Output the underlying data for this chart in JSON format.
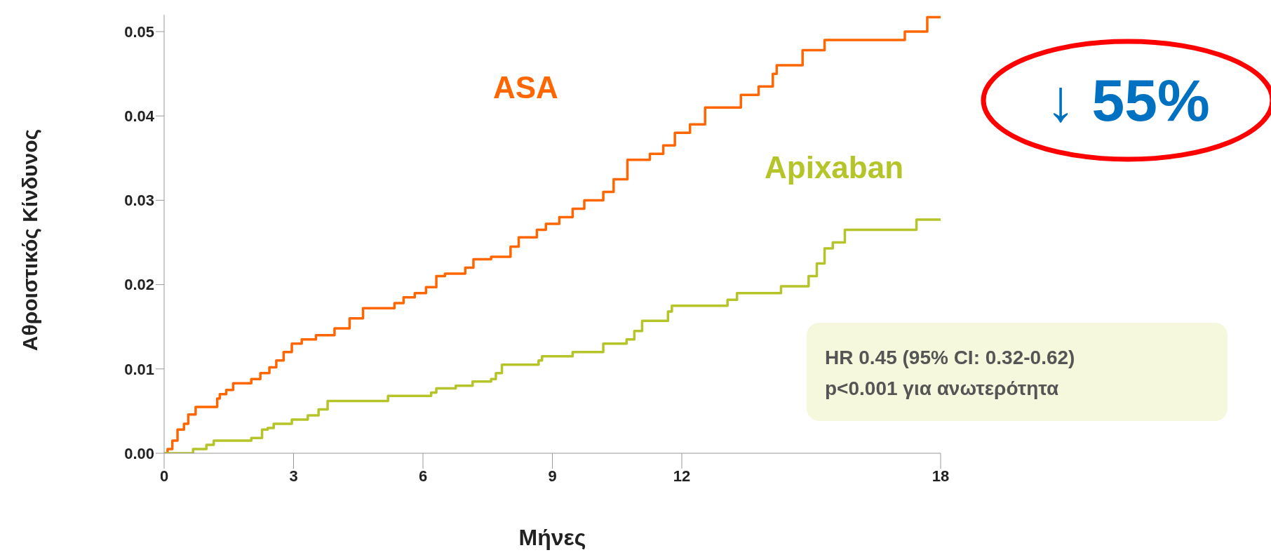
{
  "chart_data": {
    "type": "step",
    "xlabel": "Μήνες",
    "ylabel": "Αθροιστικός Κίνδυνος",
    "xlim": [
      0,
      18
    ],
    "xticks": [
      0,
      3,
      6,
      9,
      12,
      18
    ],
    "ylim": [
      0,
      0.052
    ],
    "yticks": [
      {
        "value": 0,
        "label": "0.00"
      },
      {
        "value": 0.01,
        "label": "0.01"
      },
      {
        "value": 0.02,
        "label": "0.02"
      },
      {
        "value": 0.03,
        "label": "0.03"
      },
      {
        "value": 0.04,
        "label": "0.04"
      },
      {
        "value": 0.05,
        "label": "0.05"
      }
    ],
    "grid": false,
    "legend": false,
    "line_style": "solid",
    "marker": "none",
    "series": [
      {
        "name": "ASA",
        "color": "#ff6600",
        "x": [
          0,
          0.08,
          0.19,
          0.31,
          0.46,
          0.56,
          0.73,
          1.23,
          1.29,
          1.44,
          1.6,
          2.02,
          2.23,
          2.44,
          2.6,
          2.77,
          2.96,
          3.19,
          3.52,
          3.95,
          4.3,
          4.61,
          5.34,
          5.55,
          5.81,
          6.07,
          6.31,
          6.51,
          6.98,
          7.17,
          7.58,
          8.03,
          8.22,
          8.64,
          8.85,
          9.16,
          9.47,
          9.74,
          10.18,
          10.42,
          10.74,
          11.26,
          11.57,
          11.84,
          12.19,
          12.54,
          13.37,
          13.78,
          14.11,
          14.2,
          14.8,
          15.31,
          17.17,
          17.69,
          18
        ],
        "values": [
          0,
          0.0005,
          0.0015,
          0.0028,
          0.0035,
          0.0046,
          0.0055,
          0.0065,
          0.007,
          0.0075,
          0.0083,
          0.0088,
          0.0095,
          0.0102,
          0.011,
          0.012,
          0.013,
          0.0135,
          0.014,
          0.0148,
          0.016,
          0.0172,
          0.0178,
          0.0185,
          0.019,
          0.0197,
          0.021,
          0.0213,
          0.022,
          0.023,
          0.0233,
          0.0245,
          0.0256,
          0.0265,
          0.0272,
          0.028,
          0.029,
          0.03,
          0.031,
          0.0325,
          0.0348,
          0.0355,
          0.0365,
          0.038,
          0.039,
          0.041,
          0.0425,
          0.0435,
          0.045,
          0.046,
          0.0478,
          0.049,
          0.05,
          0.0517,
          0.0517
        ]
      },
      {
        "name": "Apixaban",
        "color": "#b5c428",
        "x": [
          0,
          0.67,
          0.98,
          1.15,
          2.02,
          2.27,
          2.4,
          2.54,
          2.96,
          3.33,
          3.58,
          3.79,
          5.19,
          6.19,
          6.31,
          6.76,
          7.15,
          7.58,
          7.69,
          7.83,
          8.68,
          8.76,
          9.47,
          10.18,
          10.72,
          10.9,
          11.08,
          11.68,
          11.77,
          13.06,
          13.28,
          14.3,
          14.94,
          15.13,
          15.31,
          15.5,
          15.78,
          17.44,
          18
        ],
        "values": [
          0,
          0.0005,
          0.001,
          0.0015,
          0.0018,
          0.0028,
          0.003,
          0.0035,
          0.004,
          0.0045,
          0.0052,
          0.0062,
          0.0068,
          0.0072,
          0.0077,
          0.008,
          0.0085,
          0.0088,
          0.0095,
          0.0105,
          0.011,
          0.0115,
          0.012,
          0.013,
          0.0135,
          0.0145,
          0.0157,
          0.0168,
          0.0175,
          0.0182,
          0.019,
          0.0198,
          0.021,
          0.0225,
          0.0243,
          0.025,
          0.0265,
          0.0277,
          0.0277
        ]
      }
    ],
    "annotations": [
      "↓ 55%",
      "HR 0.45 (95% CI: 0.32-0.62)",
      "p<0.001 για ανωτερότητα"
    ]
  }
}
